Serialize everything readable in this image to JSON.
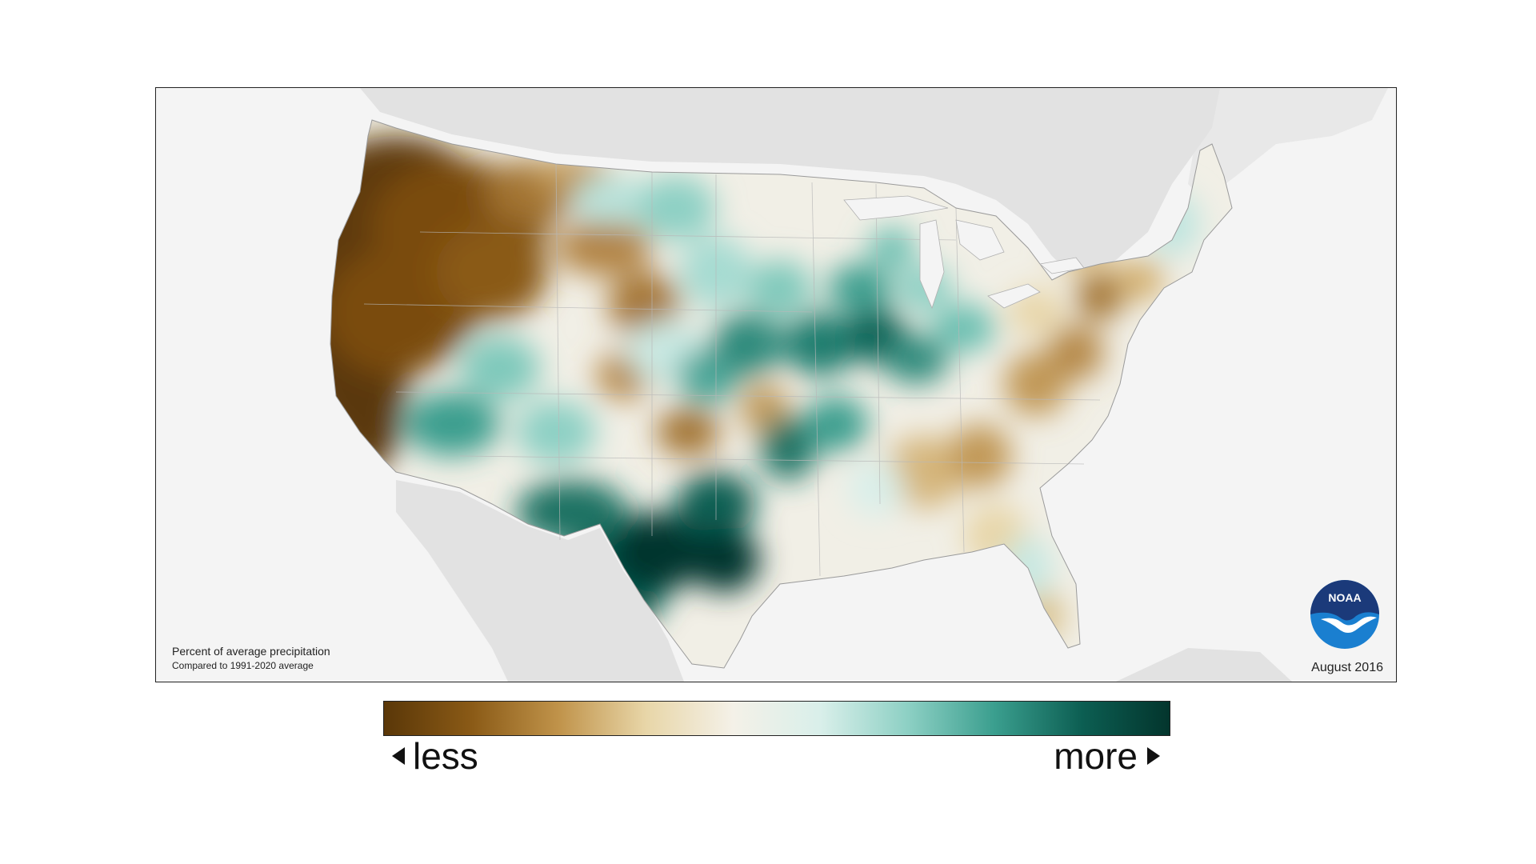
{
  "map": {
    "caption_title": "Percent of average precipitation",
    "caption_subtitle": "Compared to 1991-2020 average",
    "date": "August 2016",
    "logo_text": "NOAA",
    "background_land_color": "#e2e2e2",
    "ocean_color": "#f4f4f4"
  },
  "legend": {
    "less_label": "less",
    "more_label": "more",
    "colors": [
      "#5a3708",
      "#8a5a16",
      "#c0934a",
      "#e8d6a8",
      "#f4f1e8",
      "#d9efea",
      "#8dd0c4",
      "#3a9e8e",
      "#0c5e52",
      "#03352d"
    ]
  }
}
